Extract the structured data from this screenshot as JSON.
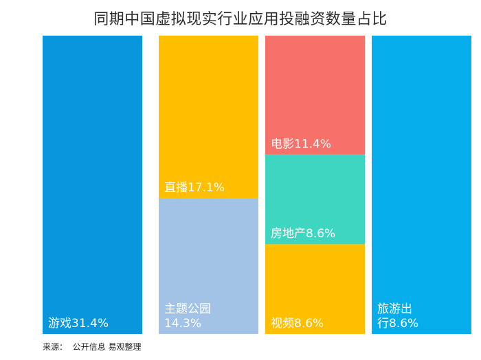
{
  "chart_data": {
    "type": "bar",
    "stacked": true,
    "title": "同期中国虚拟现实行业应用投融资数量占比",
    "xlabel": "",
    "ylabel": "",
    "grid": false,
    "legend": "none",
    "columns": [
      {
        "segments": [
          {
            "label": "游戏31.4%",
            "value": 31.4,
            "color": "#0A96DC"
          }
        ]
      },
      {
        "segments": [
          {
            "label": "主题公园\n14.3%",
            "value": 14.3,
            "color": "#A2C3E6"
          },
          {
            "label": "直播17.1%",
            "value": 17.1,
            "color": "#FDBF00"
          }
        ]
      },
      {
        "segments": [
          {
            "label": "视频8.6%",
            "value": 8.6,
            "color": "#FDBF00"
          },
          {
            "label": "房地产8.6%",
            "value": 8.6,
            "color": "#3FD6C1"
          },
          {
            "label": "电影11.4%",
            "value": 11.4,
            "color": "#F5716A"
          }
        ]
      },
      {
        "segments": [
          {
            "label": "旅游出\n行8.6%",
            "value": 8.6,
            "color": "#05AEEA"
          }
        ]
      }
    ]
  },
  "source": "来源：  公开信息 易观整理"
}
